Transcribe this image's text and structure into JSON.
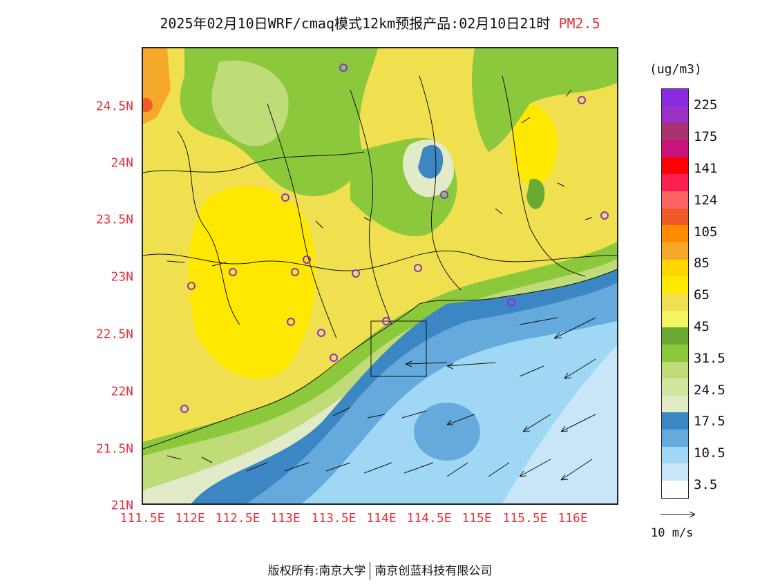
{
  "title": {
    "text": "2025年02月10日WRF/cmaq模式12km预报产品:02月10日21时",
    "variable": "PM2.5"
  },
  "axes": {
    "y_ticks": [
      "24.5N",
      "24N",
      "23.5N",
      "23N",
      "22.5N",
      "22N",
      "21.5N",
      "21N"
    ],
    "x_ticks": [
      "111.5E",
      "112E",
      "112.5E",
      "113E",
      "113.5E",
      "114E",
      "114.5E",
      "115E",
      "115.5E",
      "116E"
    ]
  },
  "legend": {
    "unit": "(ug/m3)",
    "labels": [
      "225",
      "175",
      "141",
      "124",
      "105",
      "85",
      "65",
      "45",
      "31.5",
      "24.5",
      "17.5",
      "10.5",
      "3.5"
    ],
    "colors": [
      "#8a2be2",
      "#9a32c8",
      "#a8326e",
      "#c8147a",
      "#ff0000",
      "#ff1e50",
      "#ff6464",
      "#f05a28",
      "#ff8c00",
      "#f5a82a",
      "#ffd700",
      "#ffe800",
      "#f0e050",
      "#f5f564",
      "#6aaa32",
      "#8cc83c",
      "#c0dc78",
      "#d2e6a0",
      "#e1ebc8",
      "#3c87c3",
      "#64aadc",
      "#a0d7f5",
      "#c8e6f8",
      "#ffffff"
    ]
  },
  "wind_reference": {
    "label": "10 m/s"
  },
  "footer": {
    "left": "版权所有:南京大学",
    "right": "南京创蓝科技有限公司"
  }
}
